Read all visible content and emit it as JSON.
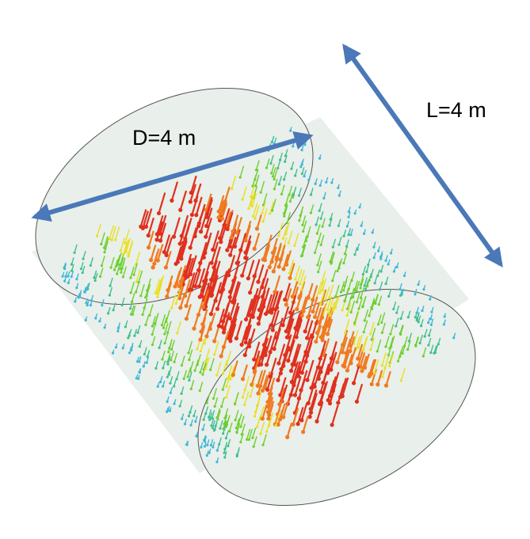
{
  "labels": {
    "diameter": "D=4 m",
    "length": "L=4 m"
  }
}
